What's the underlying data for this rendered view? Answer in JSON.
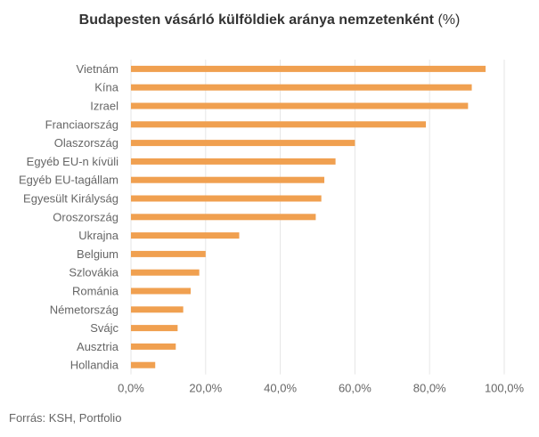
{
  "title_bold": "Budapesten vásárló külföldiek aránya nemzetenként",
  "title_unit": "(%)",
  "source": "Forrás: KSH, Portfolio",
  "colors": {
    "bar": "#f0a050",
    "grid": "#e6e6e6",
    "text": "#666666"
  },
  "chart_data": {
    "type": "bar",
    "orientation": "horizontal",
    "title": "Budapesten vásárló külföldiek aránya nemzetenként (%)",
    "categories": [
      "Vietnám",
      "Kína",
      "Izrael",
      "Franciaország",
      "Olaszország",
      "Egyéb EU-n kívüli",
      "Egyéb EU-tagállam",
      "Egyesült Királyság",
      "Oroszország",
      "Ukrajna",
      "Belgium",
      "Szlovákia",
      "Románia",
      "Németország",
      "Svájc",
      "Ausztria",
      "Hollandia"
    ],
    "values": [
      95.0,
      91.3,
      90.3,
      79.0,
      60.0,
      54.8,
      51.8,
      51.0,
      49.5,
      29.0,
      20.0,
      18.3,
      16.0,
      14.0,
      12.5,
      12.0,
      6.5
    ],
    "xlim": [
      0,
      100
    ],
    "xticks": [
      0,
      20,
      40,
      60,
      80,
      100
    ],
    "xtick_labels": [
      "0,0%",
      "20,0%",
      "40,0%",
      "60,0%",
      "80,0%",
      "100,0%"
    ],
    "xlabel": "",
    "ylabel": "",
    "grid": "vertical"
  }
}
